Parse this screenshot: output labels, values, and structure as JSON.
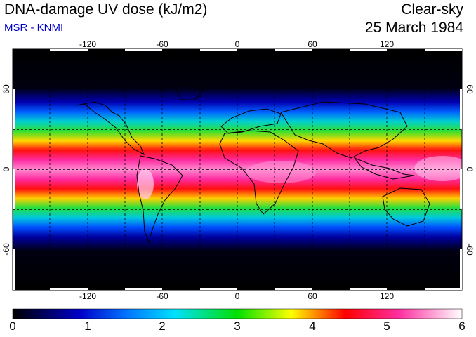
{
  "header": {
    "title": "DNA-damage UV dose (kJ/m2)",
    "source": "MSR - KNMI",
    "scenario": "Clear-sky",
    "date": "25 March 1984"
  },
  "map": {
    "lon_ticks": [
      "-120",
      "-60",
      "0",
      "60",
      "120"
    ],
    "lat_ticks_left": [
      "60",
      "0",
      "-60"
    ],
    "lat_ticks_right": [
      "60",
      "0",
      "-60"
    ],
    "lon_values": [
      -120,
      -60,
      0,
      60,
      120
    ],
    "lat_values": [
      60,
      0,
      -60
    ],
    "lon_range": [
      -180,
      180
    ],
    "lat_range": [
      -90,
      90
    ],
    "grid": "dashed every 30 degrees"
  },
  "colorbar": {
    "labels": [
      "0",
      "1",
      "2",
      "3",
      "4",
      "5",
      "6"
    ],
    "range": [
      0,
      6
    ],
    "colors": [
      "#000000",
      "#0000cc",
      "#00c8ff",
      "#00e000",
      "#ffff00",
      "#ff0000",
      "#ff2fa0",
      "#ffffff"
    ]
  }
}
